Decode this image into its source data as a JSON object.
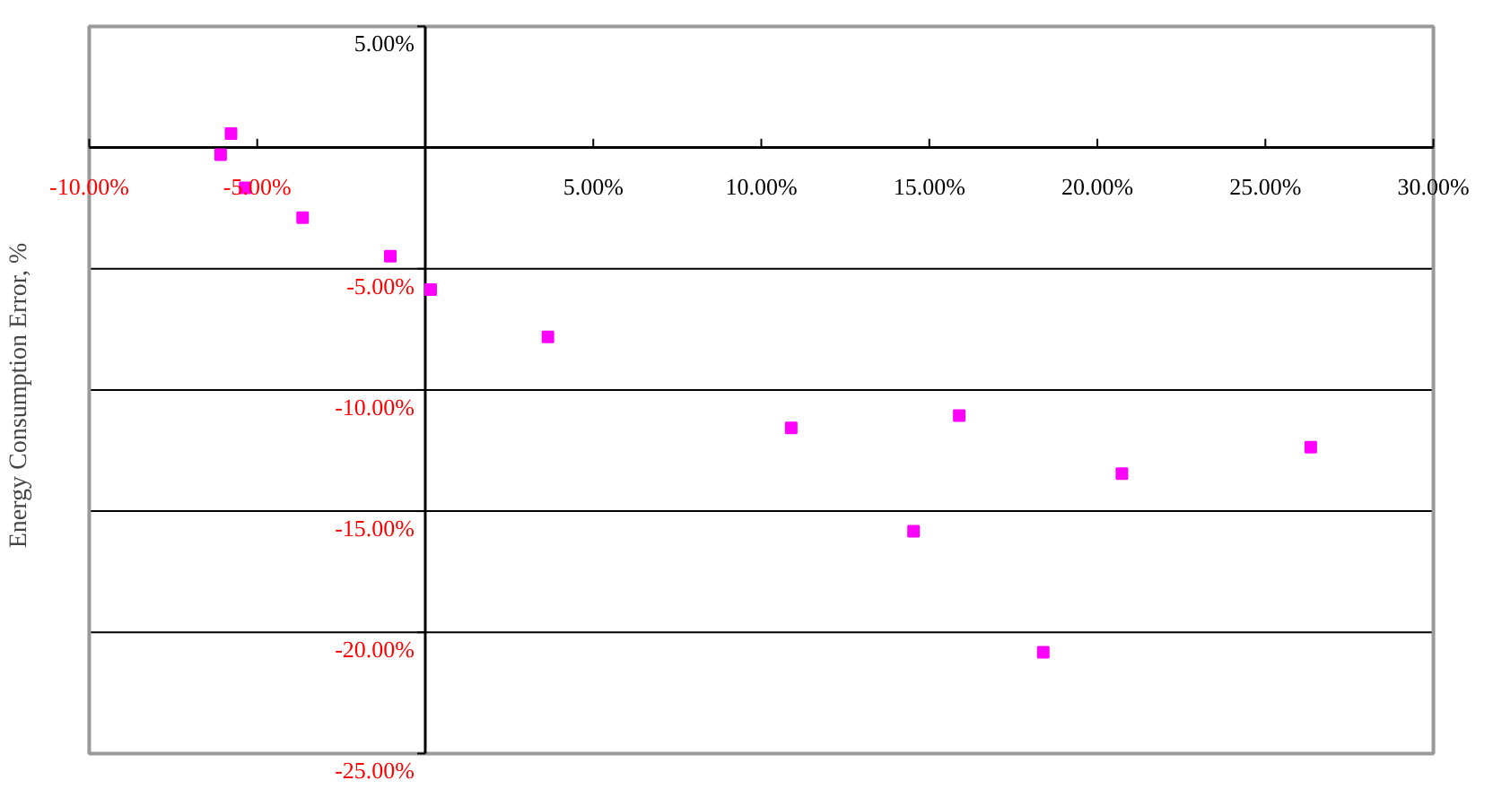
{
  "chart_data": {
    "type": "scatter",
    "ylabel": "Energy Consumption Error, %",
    "x": [
      -5.78,
      -6.09,
      -5.36,
      -3.65,
      -1.04,
      0.16,
      3.65,
      10.89,
      15.89,
      14.53,
      18.39,
      20.73,
      26.35
    ],
    "series": [
      {
        "color": "#ff00ff",
        "values": [
          0.58,
          -0.29,
          -1.66,
          -2.89,
          -4.48,
          -5.86,
          -7.81,
          -11.57,
          -11.06,
          -15.83,
          -20.82,
          -13.45,
          -12.36
        ]
      }
    ],
    "marker": "square",
    "grid": "y",
    "xlim": [
      -10,
      30
    ],
    "ylim": [
      -25,
      5
    ],
    "xticks": [
      {
        "value": -10,
        "label": "-10.00%"
      },
      {
        "value": -5,
        "label": "-5.00%"
      },
      {
        "value": 0,
        "label": null
      },
      {
        "value": 5,
        "label": "5.00%"
      },
      {
        "value": 10,
        "label": "10.00%"
      },
      {
        "value": 15,
        "label": "15.00%"
      },
      {
        "value": 20,
        "label": "20.00%"
      },
      {
        "value": 25,
        "label": "25.00%"
      },
      {
        "value": 30,
        "label": "30.00%"
      }
    ],
    "yticks": [
      {
        "value": 5,
        "label": "5.00%"
      },
      {
        "value": 0,
        "label": null
      },
      {
        "value": -5,
        "label": "-5.00%"
      },
      {
        "value": -10,
        "label": "-10.00%"
      },
      {
        "value": -15,
        "label": "-15.00%"
      },
      {
        "value": -20,
        "label": "-20.00%"
      },
      {
        "value": -25,
        "label": "-25.00%"
      }
    ]
  }
}
